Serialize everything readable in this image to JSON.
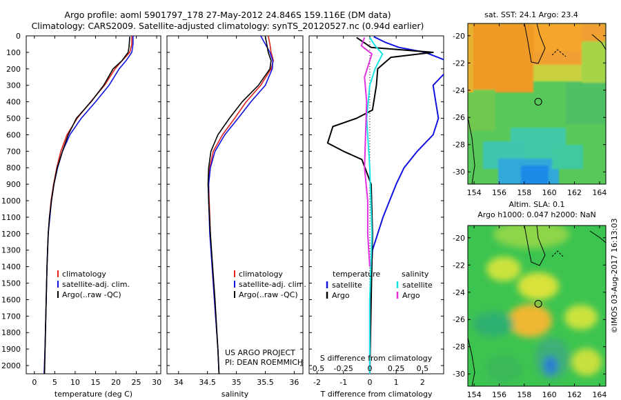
{
  "header": {
    "title_line1": "Argo profile: aoml 5901797_178 27-May-2012 24.846S 159.116E (DM data)",
    "title_line2": "Climatology: CARS2009. Satellite-adjusted climatology: synTS_20120527.nc (0.94d earlier)"
  },
  "credits": {
    "project": "US ARGO PROJECT",
    "pi": "PI: DEAN ROEMMICH",
    "stamp": "©IMOS 03-Aug-2017 16:13:03"
  },
  "colors": {
    "climatology": "#e0201e",
    "satellite": "#1010e0",
    "argo": "#000000",
    "sal_satellite": "#19e3e3",
    "sal_argo": "#e030e0"
  },
  "chart_data": [
    {
      "type": "line",
      "xlabel": "temperature (deg C)",
      "ylabel": "",
      "xlim": [
        -2,
        31
      ],
      "ylim": [
        2050,
        0
      ],
      "xticks": [
        0,
        5,
        10,
        15,
        20,
        25,
        30
      ],
      "yticks": [
        0,
        100,
        200,
        300,
        400,
        500,
        600,
        700,
        800,
        900,
        1000,
        1100,
        1200,
        1300,
        1400,
        1500,
        1600,
        1700,
        1800,
        1900,
        2000
      ],
      "legend": [
        "climatology",
        "satellite-adj. clim.",
        "Argo(..raw -QC)"
      ],
      "series": [
        {
          "name": "climatology",
          "color": "#e0201e",
          "x": [
            23.9,
            23.9,
            23.4,
            21.5,
            19.8,
            17.2,
            13.8,
            10.5,
            8.0,
            6.5,
            5.5,
            4.7,
            4.1,
            3.7,
            3.4,
            3.1,
            2.9,
            2.6,
            2.4
          ],
          "y": [
            0,
            50,
            100,
            150,
            200,
            300,
            400,
            500,
            600,
            700,
            800,
            900,
            1000,
            1100,
            1200,
            1400,
            1600,
            1900,
            2050
          ]
        },
        {
          "name": "satellite-adj. clim.",
          "color": "#1010e0",
          "x": [
            24.2,
            24.2,
            23.9,
            22.5,
            20.8,
            18.3,
            15.0,
            11.5,
            8.7,
            6.9,
            5.7,
            4.8,
            4.2,
            3.8,
            3.4,
            3.1,
            2.9,
            2.6,
            2.4
          ],
          "y": [
            0,
            50,
            100,
            150,
            200,
            300,
            400,
            500,
            600,
            700,
            800,
            900,
            1000,
            1100,
            1200,
            1400,
            1600,
            1900,
            2050
          ]
        },
        {
          "name": "Argo(..raw -QC)",
          "color": "#000000",
          "x": [
            23.4,
            23.3,
            23.2,
            23.0,
            21.5,
            19.3,
            17.0,
            13.9,
            10.3,
            8.3,
            6.9,
            5.6,
            4.8,
            4.2,
            3.7,
            3.4,
            3.1,
            2.8,
            2.5
          ],
          "y": [
            5,
            40,
            70,
            100,
            150,
            200,
            300,
            400,
            500,
            600,
            700,
            800,
            900,
            1000,
            1100,
            1200,
            1400,
            1700,
            2050
          ]
        }
      ]
    },
    {
      "type": "line",
      "xlabel": "salinity",
      "ylabel": "",
      "xlim": [
        33.8,
        36.15
      ],
      "ylim": [
        2050,
        0
      ],
      "xticks": [
        34,
        34.5,
        35,
        35.5,
        36
      ],
      "xticklabels": [
        "34",
        "34.5",
        "35",
        "35.5",
        "36"
      ],
      "legend": [
        "climatology",
        "satellite-adj. clim.",
        "Argo(..raw -QC)"
      ],
      "series": [
        {
          "name": "climatology",
          "color": "#e0201e",
          "x": [
            35.55,
            35.58,
            35.6,
            35.64,
            35.6,
            35.42,
            35.17,
            34.97,
            34.76,
            34.6,
            34.54,
            34.52,
            34.53,
            34.55,
            34.58,
            34.62,
            34.68,
            34.7
          ],
          "y": [
            0,
            50,
            100,
            150,
            200,
            300,
            400,
            500,
            600,
            700,
            800,
            900,
            1000,
            1200,
            1400,
            1600,
            1900,
            2050
          ]
        },
        {
          "name": "satellite-adj. clim.",
          "color": "#1010e0",
          "x": [
            35.42,
            35.5,
            35.58,
            35.63,
            35.62,
            35.5,
            35.25,
            35.03,
            34.8,
            34.63,
            34.55,
            34.52,
            34.52,
            34.54,
            34.58,
            34.62,
            34.68,
            34.7
          ],
          "y": [
            0,
            50,
            100,
            150,
            200,
            300,
            400,
            500,
            600,
            700,
            800,
            900,
            1000,
            1200,
            1400,
            1600,
            1900,
            2050
          ]
        },
        {
          "name": "Argo(..raw -QC)",
          "color": "#000000",
          "x": [
            35.5,
            35.52,
            35.55,
            35.6,
            35.58,
            35.38,
            35.1,
            34.88,
            34.68,
            34.56,
            34.52,
            34.51,
            34.52,
            34.55,
            34.59,
            34.63,
            34.68,
            34.7
          ],
          "y": [
            5,
            40,
            100,
            150,
            200,
            300,
            400,
            500,
            600,
            700,
            800,
            900,
            1000,
            1200,
            1400,
            1600,
            1900,
            2050
          ]
        }
      ]
    },
    {
      "type": "line",
      "xlabel": "T difference from climatology",
      "xlabel_top": "S difference from climatology",
      "ylabel": "",
      "xlim": [
        -2.3,
        2.8
      ],
      "ylim": [
        2050,
        0
      ],
      "xticks": [
        -2,
        -1,
        0,
        1,
        2
      ],
      "xticks_top": [
        -0.5,
        -0.25,
        0,
        0.25,
        0.5
      ],
      "xticklabels_top": [
        "-0.5",
        "-0.25",
        "0",
        "0.25",
        "0.5"
      ],
      "legend_titles": [
        "temperature",
        "salinity"
      ],
      "legend": [
        "satellite",
        "Argo",
        "satellite",
        "Argo"
      ],
      "series": [
        {
          "name": "satellite",
          "color": "#1010e0",
          "x": [
            0.15,
            0.6,
            1.1,
            2.1,
            2.9,
            3.0,
            2.4,
            2.5,
            2.6,
            2.4,
            1.8,
            1.3,
            1.0,
            0.5,
            0.1,
            0.0,
            0.0
          ],
          "y": [
            5,
            40,
            70,
            100,
            150,
            200,
            300,
            400,
            500,
            600,
            700,
            800,
            900,
            1100,
            1300,
            1600,
            2050
          ]
        },
        {
          "name": "Argo",
          "color": "#000000",
          "x": [
            -0.5,
            0.05,
            2.4,
            0.8,
            0.3,
            0.25,
            0.1,
            -0.5,
            -1.4,
            -1.6,
            -1.0,
            -0.3,
            0.05,
            0.1,
            0.05,
            0.0
          ],
          "y": [
            10,
            70,
            100,
            130,
            200,
            300,
            450,
            500,
            550,
            650,
            700,
            750,
            900,
            1200,
            1600,
            2050
          ]
        },
        {
          "name": "satellite",
          "color": "#19e3e3",
          "x": [
            0.0,
            0.05,
            0.12,
            0.05,
            0.0,
            -0.03,
            0.0,
            0.02,
            0.0,
            0.0
          ],
          "y": [
            10,
            60,
            110,
            200,
            300,
            500,
            800,
            1200,
            1600,
            2050
          ]
        },
        {
          "name": "Argo",
          "color": "#e030e0",
          "x": [
            -0.05,
            -0.08,
            0.02,
            -0.05,
            -0.03,
            -0.04,
            -0.05,
            -0.02,
            -0.02,
            0.0
          ],
          "y": [
            10,
            60,
            110,
            250,
            400,
            600,
            800,
            1000,
            1200,
            1400
          ]
        }
      ]
    },
    {
      "type": "heatmap",
      "title": "sat. SST: 24.1  Argo: 23.4",
      "xlim": [
        153.5,
        164.5
      ],
      "ylim": [
        -30.9,
        -19.1
      ],
      "xticks": [
        154,
        156,
        158,
        160,
        162,
        164
      ],
      "yticks": [
        -20,
        -22,
        -24,
        -26,
        -28,
        -30
      ],
      "marker": {
        "lon": 159.116,
        "lat": -24.846
      }
    },
    {
      "type": "heatmap",
      "title": "Altim. SLA: 0.1",
      "subtitle": "Argo h1000: 0.047  h2000: NaN",
      "xlim": [
        153.5,
        164.5
      ],
      "ylim": [
        -30.9,
        -19.1
      ],
      "xticks": [
        154,
        156,
        158,
        160,
        162,
        164
      ],
      "yticks": [
        -20,
        -22,
        -24,
        -26,
        -28,
        -30
      ],
      "marker": {
        "lon": 159.116,
        "lat": -24.846
      }
    }
  ]
}
